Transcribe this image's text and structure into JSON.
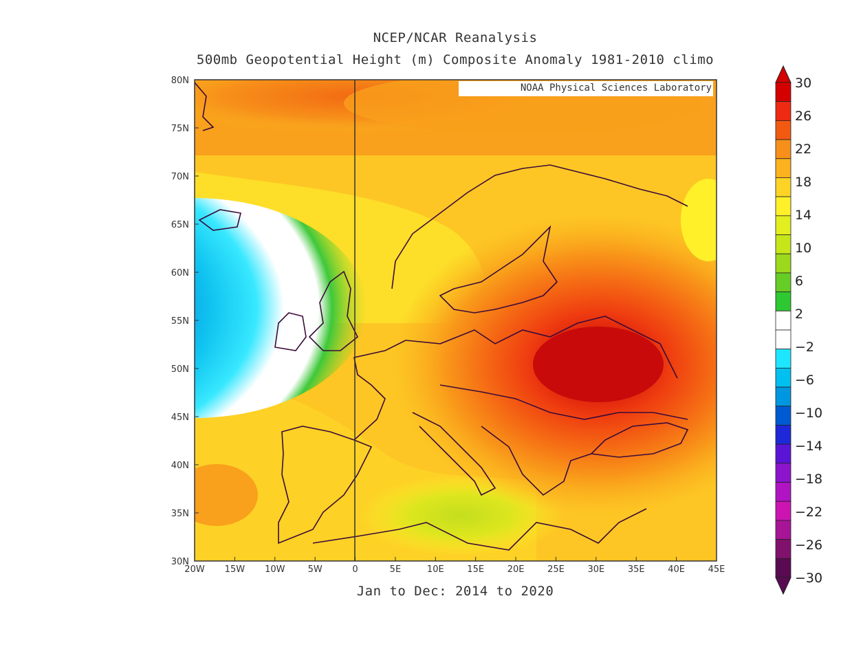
{
  "title_line1": "NCEP/NCAR Reanalysis",
  "title_line2": "500mb Geopotential Height (m) Composite Anomaly 1981-2010 climo",
  "subtitle": "Jan to Dec: 2014 to 2020",
  "credit": "NOAA Physical Sciences Laboratory",
  "map": {
    "lon_range": [
      -20,
      45
    ],
    "lat_range": [
      30,
      80
    ],
    "lon_ticks": [
      "20W",
      "15W",
      "10W",
      "5W",
      "0",
      "5E",
      "10E",
      "15E",
      "20E",
      "25E",
      "30E",
      "35E",
      "40E",
      "45E"
    ],
    "lat_ticks": [
      "80N",
      "75N",
      "70N",
      "65N",
      "60N",
      "55N",
      "50N",
      "45N",
      "40N",
      "35N",
      "30N"
    ],
    "anomaly_centers": [
      {
        "name": "positive-max",
        "lon": 30,
        "lat": 51,
        "value": 28
      },
      {
        "name": "negative-min",
        "lon": -20,
        "lat": 57,
        "value": -12
      }
    ]
  },
  "colorbar": {
    "labels": [
      "30",
      "26",
      "22",
      "18",
      "14",
      "10",
      "6",
      "2",
      "-2",
      "-6",
      "-10",
      "-14",
      "-18",
      "-22",
      "-26",
      "-30"
    ],
    "colors": [
      "#d40000",
      "#ee2a12",
      "#f25a12",
      "#f7901a",
      "#fbb21e",
      "#fdd426",
      "#fff02a",
      "#e2ee1e",
      "#c6e61a",
      "#9cd81c",
      "#66cc26",
      "#2ec832",
      "#ffffff",
      "#ffffff",
      "#1ee6ff",
      "#00c0f0",
      "#0096e0",
      "#005ad2",
      "#1e28d8",
      "#5a14d6",
      "#8c14cc",
      "#b014c2",
      "#cc14b2",
      "#a81496",
      "#80126e",
      "#5a0a52"
    ]
  }
}
